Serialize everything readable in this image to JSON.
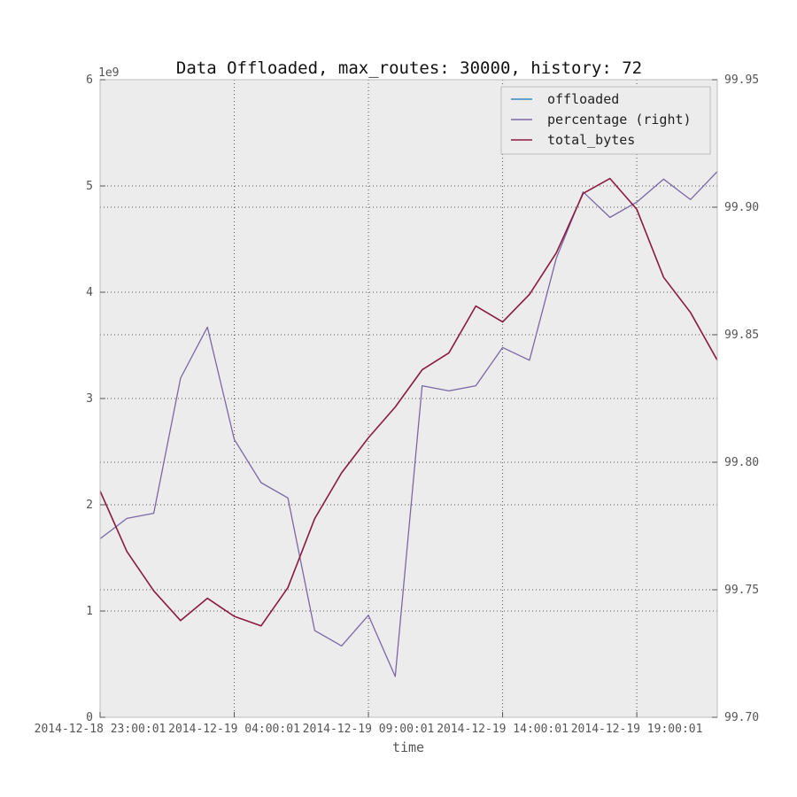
{
  "chart_data": {
    "type": "line",
    "title": "Data Offloaded, max_routes: 30000, history: 72",
    "xlabel": "time",
    "ylabel": "",
    "y_offset_label": "1e9",
    "ylim": [
      0,
      6
    ],
    "y2lim": [
      99.7,
      99.95
    ],
    "xlim": [
      0,
      23
    ],
    "grid": true,
    "legend_position": "top-right",
    "background": "#ececec",
    "x_tick_positions": [
      0,
      5,
      10,
      15,
      20
    ],
    "x_tick_labels": [
      "2014-12-18 23:00:01",
      "2014-12-19 04:00:01",
      "2014-12-19 09:00:01",
      "2014-12-19 14:00:01",
      "2014-12-19 19:00:01"
    ],
    "y_ticks": [
      "0",
      "1",
      "2",
      "3",
      "4",
      "5",
      "6"
    ],
    "y2_ticks": [
      "99.70",
      "99.75",
      "99.80",
      "99.85",
      "99.90",
      "99.95"
    ],
    "series": [
      {
        "name": "offloaded",
        "axis": "left",
        "color": "#348abd",
        "values": []
      },
      {
        "name": "percentage (right)",
        "axis": "right",
        "color": "#7a68a6",
        "values": [
          99.77,
          99.778,
          99.78,
          99.833,
          99.853,
          99.809,
          99.792,
          99.786,
          99.734,
          99.728,
          99.74,
          99.716,
          99.83,
          99.828,
          99.83,
          99.845,
          99.84,
          99.88,
          99.906,
          99.896,
          99.902,
          99.911,
          99.903,
          99.914
        ]
      },
      {
        "name": "total_bytes",
        "axis": "left",
        "color": "#8b1a3f",
        "values": [
          2.13,
          1.56,
          1.19,
          0.91,
          1.12,
          0.95,
          0.86,
          1.22,
          1.87,
          2.3,
          2.63,
          2.92,
          3.27,
          3.43,
          3.87,
          3.72,
          3.98,
          4.37,
          4.93,
          5.07,
          4.78,
          4.14,
          3.81,
          3.36
        ]
      }
    ]
  }
}
